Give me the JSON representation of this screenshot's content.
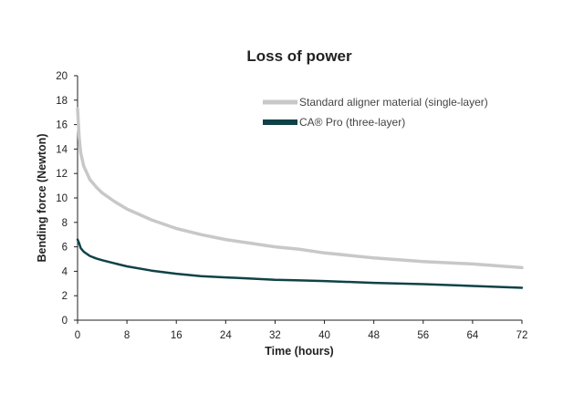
{
  "chart_data": {
    "type": "line",
    "title": "Loss of power",
    "xlabel": "Time (hours)",
    "ylabel": "Bending force (Newton)",
    "xlim": [
      0,
      72
    ],
    "ylim": [
      0,
      20
    ],
    "xticks": [
      0,
      8,
      16,
      24,
      32,
      40,
      48,
      56,
      64,
      72
    ],
    "yticks": [
      0,
      2,
      4,
      6,
      8,
      10,
      12,
      14,
      16,
      18,
      20
    ],
    "grid": false,
    "legend_position": "top-right",
    "series": [
      {
        "name": "Standard aligner material (single-layer)",
        "color": "#c8c8c8",
        "x": [
          0,
          0.25,
          0.5,
          1,
          2,
          3,
          4,
          6,
          8,
          12,
          16,
          20,
          24,
          28,
          32,
          36,
          40,
          48,
          56,
          64,
          72
        ],
        "y": [
          17.3,
          15.0,
          13.7,
          12.6,
          11.5,
          10.9,
          10.4,
          9.7,
          9.1,
          8.2,
          7.5,
          7.0,
          6.6,
          6.3,
          6.0,
          5.8,
          5.5,
          5.1,
          4.8,
          4.6,
          4.3
        ]
      },
      {
        "name": "CA® Pro (three-layer)",
        "color": "#0f4247",
        "x": [
          0,
          0.25,
          0.5,
          1,
          2,
          3,
          4,
          6,
          8,
          12,
          16,
          20,
          24,
          28,
          32,
          36,
          40,
          48,
          56,
          64,
          72
        ],
        "y": [
          6.6,
          6.3,
          5.9,
          5.6,
          5.25,
          5.05,
          4.9,
          4.65,
          4.4,
          4.05,
          3.8,
          3.6,
          3.5,
          3.4,
          3.3,
          3.25,
          3.2,
          3.05,
          2.95,
          2.8,
          2.65
        ]
      }
    ]
  }
}
